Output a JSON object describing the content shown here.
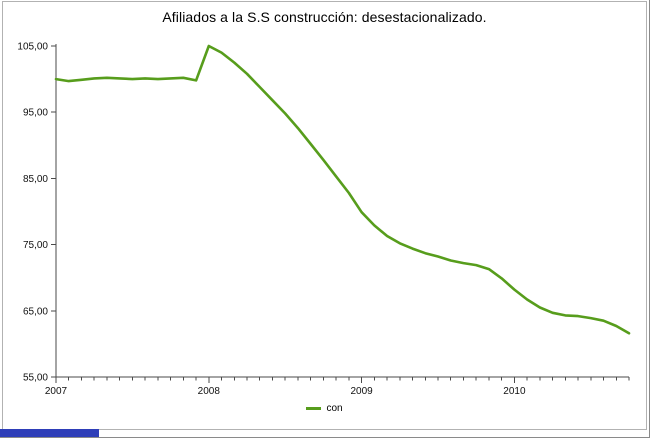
{
  "window_fragment": {
    "color": "#2e3eb8"
  },
  "chart_data": {
    "type": "line",
    "title": "Afiliados a la S.S construcción: desestacionalizado.",
    "xlabel": "",
    "ylabel": "",
    "ylim": [
      55,
      105
    ],
    "grid": false,
    "legend_position": "bottom",
    "x_unit": "month",
    "points_per_year": 12,
    "x_tick_labels": [
      "2007",
      "2008",
      "2009",
      "2010"
    ],
    "x_tick_indices": [
      0,
      12,
      24,
      36
    ],
    "y_ticks": [
      55,
      65,
      75,
      85,
      95,
      105
    ],
    "y_tick_labels": [
      "55,00",
      "65,00",
      "75,00",
      "85,00",
      "95,00",
      "105,00"
    ],
    "series": [
      {
        "name": "con",
        "color": "#579d1c",
        "values": [
          100.0,
          99.7,
          99.9,
          100.1,
          100.2,
          100.1,
          100.0,
          100.1,
          100.0,
          100.1,
          100.2,
          99.8,
          105.0,
          104.0,
          102.5,
          100.8,
          98.8,
          96.8,
          94.8,
          92.6,
          90.2,
          87.8,
          85.3,
          82.8,
          79.9,
          77.9,
          76.3,
          75.2,
          74.4,
          73.7,
          73.2,
          72.6,
          72.2,
          71.9,
          71.3,
          69.9,
          68.2,
          66.7,
          65.5,
          64.7,
          64.3,
          64.2,
          63.9,
          63.5,
          62.7,
          61.6
        ]
      }
    ]
  }
}
